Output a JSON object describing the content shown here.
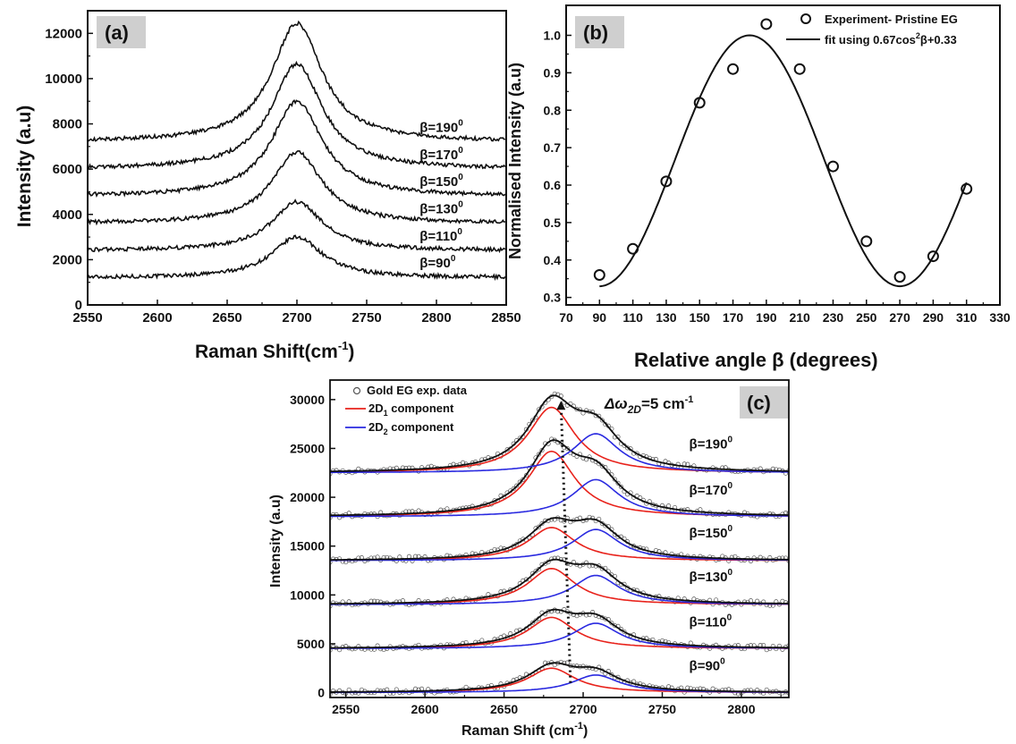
{
  "chart_data": [
    {
      "panel": "(a)",
      "type": "line",
      "xlabel": "Raman Shift(cm",
      "xlabel_sup": "-1",
      "xlabel_end": ")",
      "ylabel": "Intensity (a.u)",
      "xlim": [
        2550,
        2850
      ],
      "ylim": [
        0,
        13000
      ],
      "x_ticks": [
        2550,
        2600,
        2650,
        2700,
        2750,
        2800,
        2850
      ],
      "y_ticks": [
        0,
        2000,
        4000,
        6000,
        8000,
        10000,
        12000
      ],
      "peak_center": 2700,
      "series": [
        {
          "name": "β=90",
          "baseline": 1200,
          "peak": 3000,
          "width": 22
        },
        {
          "name": "β=110",
          "baseline": 2400,
          "peak": 4550,
          "width": 22
        },
        {
          "name": "β=130",
          "baseline": 3600,
          "peak": 6750,
          "width": 22
        },
        {
          "name": "β=150",
          "baseline": 4800,
          "peak": 9000,
          "width": 22
        },
        {
          "name": "β=170",
          "baseline": 6000,
          "peak": 10650,
          "width": 22
        },
        {
          "name": "β=190",
          "baseline": 7200,
          "peak": 12450,
          "width": 22
        }
      ],
      "labels": [
        {
          "text": "β=190",
          "sup": "0"
        },
        {
          "text": "β=170",
          "sup": "0"
        },
        {
          "text": "β=150",
          "sup": "0"
        },
        {
          "text": "β=130",
          "sup": "0"
        },
        {
          "text": "β=110",
          "sup": "0"
        },
        {
          "text": "β=90",
          "sup": "0"
        }
      ]
    },
    {
      "panel": "(b)",
      "type": "scatter",
      "xlabel": "Relative angle β (degrees)",
      "ylabel": "Normalised Intensity (a.u)",
      "xlim": [
        70,
        330
      ],
      "ylim": [
        0.28,
        1.08
      ],
      "x_ticks": [
        70,
        90,
        110,
        130,
        150,
        170,
        190,
        210,
        230,
        250,
        270,
        290,
        310,
        330
      ],
      "y_ticks": [
        0.3,
        0.4,
        0.5,
        0.6,
        0.7,
        0.8,
        0.9,
        1.0
      ],
      "points": {
        "name": "Experiment- Pristine EG",
        "x": [
          90,
          110,
          130,
          150,
          170,
          190,
          210,
          230,
          250,
          270,
          290,
          310
        ],
        "y": [
          0.36,
          0.43,
          0.61,
          0.82,
          0.91,
          1.03,
          0.91,
          0.65,
          0.45,
          0.355,
          0.41,
          0.59
        ]
      },
      "fit": {
        "name_prefix": "fit using 0.67cos",
        "name_sup": "2",
        "name_suffix": "β+0.33",
        "amplitude": 0.67,
        "offset": 0.33,
        "center": 180,
        "x_range": [
          90,
          310
        ]
      }
    },
    {
      "panel": "(c)",
      "type": "line",
      "xlabel": "Raman Shift (cm",
      "xlabel_sup": "-1",
      "xlabel_end": ")",
      "ylabel": "Intensity (a.u)",
      "xlim": [
        2540,
        2830
      ],
      "ylim": [
        -500,
        32000
      ],
      "x_ticks": [
        2550,
        2600,
        2650,
        2700,
        2750,
        2800
      ],
      "y_ticks": [
        0,
        5000,
        10000,
        15000,
        20000,
        25000,
        30000
      ],
      "annotation": {
        "text": "Δω",
        "sub": "2D",
        "suffix": "=5 cm",
        "sup": "-1"
      },
      "legend": [
        {
          "name": "Gold EG exp. data",
          "color": "#555555"
        },
        {
          "name": "2D",
          "sub": "1",
          "suffix": " component",
          "color": "#e8221b"
        },
        {
          "name": "2D",
          "sub": "2",
          "suffix": " component",
          "color": "#2a2ae0"
        }
      ],
      "components": {
        "c1_center": 2680,
        "c2_center": 2708,
        "width": 18
      },
      "series": [
        {
          "name": "β=90",
          "baseline": 0,
          "amp1": 2500,
          "amp2": 1800
        },
        {
          "name": "β=110",
          "baseline": 4500,
          "amp1": 3200,
          "amp2": 2600
        },
        {
          "name": "β=130",
          "baseline": 9000,
          "amp1": 3700,
          "amp2": 3000
        },
        {
          "name": "β=150",
          "baseline": 13500,
          "amp1": 3400,
          "amp2": 3200
        },
        {
          "name": "β=170",
          "baseline": 18000,
          "amp1": 6700,
          "amp2": 3800
        },
        {
          "name": "β=190",
          "baseline": 22500,
          "amp1": 6700,
          "amp2": 4000
        }
      ],
      "labels": [
        {
          "text": "β=190",
          "sup": "0"
        },
        {
          "text": "β=170",
          "sup": "0"
        },
        {
          "text": "β=150",
          "sup": "0"
        },
        {
          "text": "β=130",
          "sup": "0"
        },
        {
          "text": "β=110",
          "sup": "0"
        },
        {
          "text": "β=90",
          "sup": "0"
        }
      ]
    }
  ],
  "colors": {
    "axis": "#111111",
    "data": "#111111",
    "c1": "#e8221b",
    "c2": "#2a2ae0",
    "label_bg": "#cfcfcf"
  }
}
